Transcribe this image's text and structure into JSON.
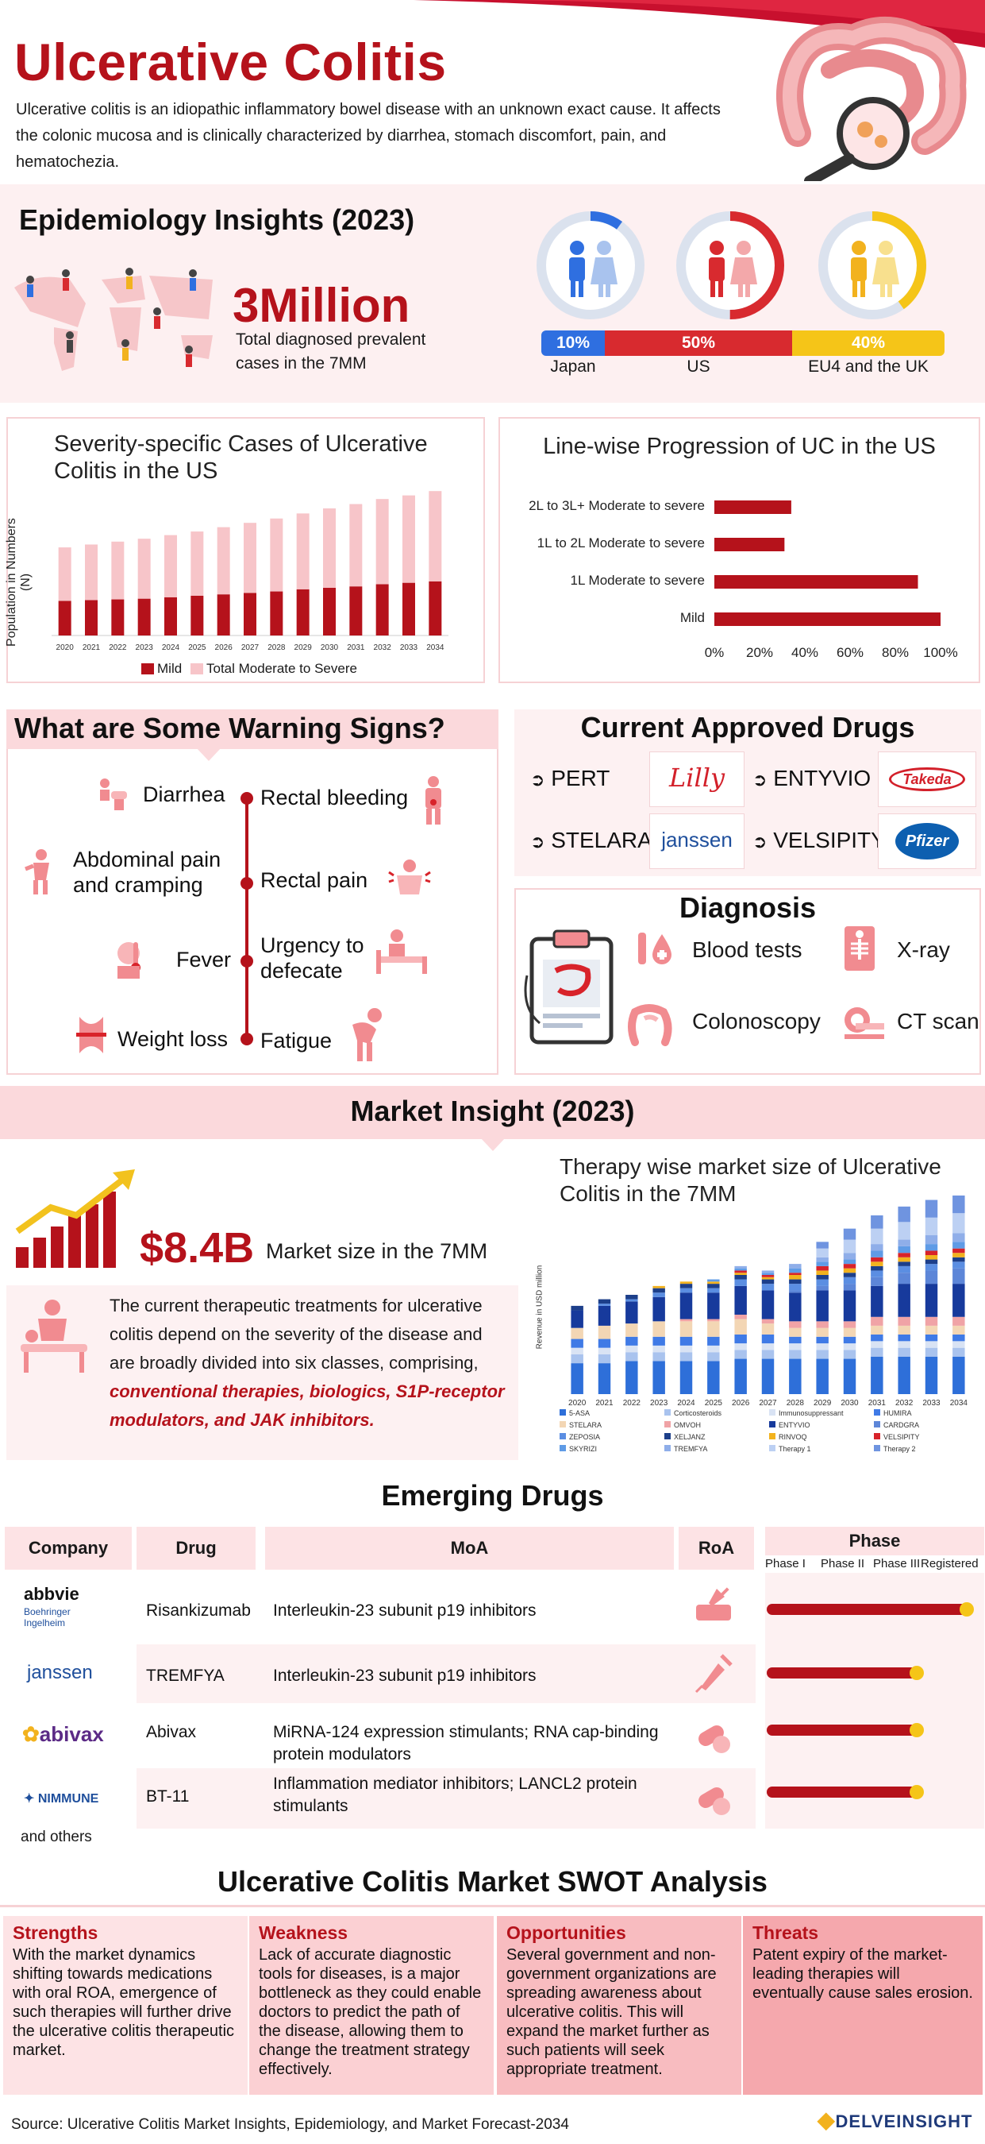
{
  "header": {
    "title": "Ulcerative Colitis",
    "intro": "Ulcerative colitis is an idiopathic inflammatory bowel disease with an unknown exact cause. It affects the colonic mucosa and is clinically characterized by diarrhea, stomach discomfort, pain, and hematochezia."
  },
  "epidemiology": {
    "title": "Epidemiology Insights (2023)",
    "big_number": "3Million",
    "big_caption": "Total diagnosed prevalent cases in the 7MM",
    "regions": [
      {
        "label": "Japan",
        "pct": "10%",
        "share": 0.1,
        "color": "#2f6fe0"
      },
      {
        "label": "US",
        "pct": "50%",
        "share": 0.5,
        "color": "#d82a2f"
      },
      {
        "label": "EU4 and the UK",
        "pct": "40%",
        "share": 0.4,
        "color": "#f5c518"
      }
    ]
  },
  "severity_chart": {
    "title": "Severity-specific Cases of Ulcerative Colitis in the US",
    "ylabel": "Population in Numbers (N)",
    "legend": [
      "Mild",
      "Total Moderate to Severe"
    ]
  },
  "line_chart": {
    "title": "Line-wise Progression of UC in the US"
  },
  "chart_data": [
    {
      "type": "bar",
      "title": "Severity-specific Cases of Ulcerative Colitis in the US",
      "ylabel": "Population in Numbers (N)",
      "categories": [
        "2020",
        "2021",
        "2022",
        "2023",
        "2024",
        "2025",
        "2026",
        "2027",
        "2028",
        "2029",
        "2030",
        "2031",
        "2032",
        "2033",
        "2034"
      ],
      "series": [
        {
          "name": "Mild",
          "color": "#b5121b",
          "values": [
            48,
            49,
            50,
            51,
            53,
            55,
            57,
            59,
            61,
            64,
            66,
            68,
            71,
            73,
            75
          ]
        },
        {
          "name": "Total Moderate to Severe",
          "color": "#f7c5c9",
          "values": [
            74,
            77,
            80,
            83,
            86,
            89,
            93,
            97,
            101,
            105,
            110,
            114,
            118,
            121,
            125
          ]
        }
      ],
      "stacked": true,
      "ylim": [
        0,
        220
      ],
      "legend": "bottom"
    },
    {
      "type": "bar",
      "orientation": "horizontal",
      "title": "Line-wise Progression of UC in the US",
      "categories": [
        "2L to 3L+ Moderate to severe",
        "1L to 2L Moderate to severe",
        "1L Moderate to severe",
        "Mild"
      ],
      "values": [
        34,
        31,
        90,
        100
      ],
      "x_ticks": [
        "0%",
        "20%",
        "40%",
        "60%",
        "80%",
        "100%"
      ],
      "xlim": [
        0,
        100
      ],
      "color": "#b5121b"
    },
    {
      "type": "bar",
      "title": "Therapy wise market size of Ulcerative Colitis in the 7MM",
      "ylabel": "Revenue in USD million",
      "categories": [
        "2020",
        "2021",
        "2022",
        "2023",
        "2024",
        "2025",
        "2026",
        "2027",
        "2028",
        "2029",
        "2030",
        "2031",
        "2032",
        "2033",
        "2034"
      ],
      "stacked": true,
      "series": [
        {
          "name": "5-ASA",
          "color": "#2e6fd9",
          "values": [
            14,
            14,
            15,
            15,
            15,
            15,
            16,
            16,
            16,
            16,
            16,
            17,
            17,
            17,
            17
          ]
        },
        {
          "name": "Corticosteroids",
          "color": "#a9c3ee",
          "values": [
            4,
            4,
            4,
            4,
            4,
            4,
            4,
            4,
            4,
            4,
            4,
            4,
            4,
            4,
            4
          ]
        },
        {
          "name": "Immunosuppressant",
          "color": "#d9e3f4",
          "values": [
            3,
            3,
            3,
            3,
            3,
            3,
            3,
            3,
            3,
            3,
            3,
            3,
            3,
            3,
            3
          ]
        },
        {
          "name": "HUMIRA",
          "color": "#3f7ae6",
          "values": [
            4,
            4,
            4,
            4,
            4,
            4,
            4,
            4,
            3,
            3,
            3,
            3,
            3,
            3,
            3
          ]
        },
        {
          "name": "STELARA",
          "color": "#f3d6b4",
          "values": [
            5,
            6,
            6,
            7,
            7,
            7,
            7,
            5,
            4,
            4,
            4,
            4,
            4,
            4,
            4
          ]
        },
        {
          "name": "OMVOH",
          "color": "#f0a3a6",
          "values": [
            0,
            0,
            0,
            0,
            1,
            1,
            2,
            2,
            3,
            3,
            3,
            4,
            4,
            4,
            4
          ]
        },
        {
          "name": "ENTYVIO",
          "color": "#173a9c",
          "values": [
            8,
            9,
            10,
            11,
            12,
            12,
            13,
            13,
            13,
            14,
            14,
            14,
            15,
            15,
            15
          ]
        },
        {
          "name": "CARDGRA",
          "color": "#5d86d8",
          "values": [
            0,
            0,
            0,
            0,
            0,
            0,
            0,
            0,
            1,
            2,
            3,
            4,
            5,
            6,
            7
          ]
        },
        {
          "name": "ZEPOSIA",
          "color": "#5b8ee2",
          "values": [
            0,
            1,
            1,
            2,
            2,
            2,
            3,
            3,
            3,
            3,
            3,
            3,
            3,
            3,
            3
          ]
        },
        {
          "name": "XELJANZ",
          "color": "#1d3f8a",
          "values": [
            2,
            2,
            2,
            2,
            2,
            2,
            2,
            2,
            2,
            2,
            2,
            2,
            2,
            2,
            2
          ]
        },
        {
          "name": "RINVOQ",
          "color": "#f2b21e",
          "values": [
            0,
            0,
            0,
            1,
            1,
            1,
            1,
            1,
            2,
            2,
            2,
            2,
            2,
            2,
            2
          ]
        },
        {
          "name": "VELSIPITY",
          "color": "#d8232a",
          "values": [
            0,
            0,
            0,
            0,
            0,
            0,
            1,
            1,
            1,
            2,
            2,
            2,
            2,
            2,
            2
          ]
        },
        {
          "name": "SKYRIZI",
          "color": "#5f9be6",
          "values": [
            0,
            0,
            0,
            0,
            0,
            1,
            1,
            1,
            2,
            2,
            2,
            3,
            3,
            3,
            3
          ]
        },
        {
          "name": "TREMFYA",
          "color": "#8faee9",
          "values": [
            0,
            0,
            0,
            0,
            0,
            0,
            1,
            1,
            2,
            2,
            3,
            3,
            3,
            4,
            4
          ]
        },
        {
          "name": "Therapy 1",
          "color": "#bcd0f3",
          "values": [
            0,
            0,
            0,
            0,
            0,
            0,
            0,
            0,
            0,
            4,
            6,
            7,
            8,
            8,
            9
          ]
        },
        {
          "name": "Therapy 2",
          "color": "#6f94e0",
          "values": [
            0,
            0,
            0,
            0,
            0,
            0,
            0,
            0,
            0,
            3,
            5,
            6,
            7,
            8,
            8
          ]
        }
      ],
      "legend": "bottom"
    }
  ],
  "warning_signs": {
    "title": "What are Some Warning Signs?",
    "left": [
      "Diarrhea",
      "Abdominal pain and cramping",
      "Fever",
      "Weight loss"
    ],
    "right": [
      "Rectal bleeding",
      "Rectal pain",
      "Urgency to defecate",
      "Fatigue"
    ]
  },
  "approved_drugs": {
    "title": "Current Approved Drugs",
    "items": [
      {
        "name": "PERT",
        "company": "Lilly",
        "color": "#d3202a"
      },
      {
        "name": "ENTYVIO",
        "company": "Takeda",
        "color": "#d3202a"
      },
      {
        "name": "STELARA",
        "company": "janssen",
        "color": "#1f4f9c"
      },
      {
        "name": "VELSIPITY",
        "company": "Pfizer",
        "color": "#0d5fb0"
      }
    ]
  },
  "diagnosis": {
    "title": "Diagnosis",
    "items": [
      "Blood tests",
      "X-ray",
      "Colonoscopy",
      "CT scan"
    ]
  },
  "market": {
    "title": "Market Insight (2023)",
    "size": "$8.4B",
    "size_caption": "Market size in the 7MM",
    "text_plain": "The current therapeutic treatments for ulcerative colitis depend on the severity of the disease and are broadly divided into six classes, comprising,",
    "text_emph": "conventional therapies, biologics, S1P-receptor modulators, and JAK inhibitors.",
    "chart_title": "Therapy wise market size of Ulcerative Colitis in the 7MM",
    "chart_ylabel": "Revenue in USD million"
  },
  "emerging": {
    "title": "Emerging Drugs",
    "headers": {
      "company": "Company",
      "drug": "Drug",
      "moa": "MoA",
      "roa": "RoA",
      "phase": "Phase"
    },
    "phases": [
      "Phase I",
      "Phase II",
      "Phase III",
      "Registered"
    ],
    "rows": [
      {
        "company": "abbvie / Boehringer Ingelheim",
        "drug": "Risankizumab",
        "moa": "Interleukin-23 subunit p19 inhibitors",
        "roa": "injection",
        "phase_level": 1.0
      },
      {
        "company": "janssen",
        "drug": "TREMFYA",
        "moa": "Interleukin-23 subunit p19 inhibitors",
        "roa": "syringe",
        "phase_level": 0.75
      },
      {
        "company": "abivax",
        "drug": "Abivax",
        "moa": "MiRNA-124 expression stimulants; RNA cap-binding protein modulators",
        "roa": "oral",
        "phase_level": 0.75
      },
      {
        "company": "NIMMUNE",
        "drug": "BT-11",
        "moa": "Inflammation mediator inhibitors; LANCL2 protein stimulants",
        "roa": "oral",
        "phase_level": 0.75
      }
    ],
    "others": "and others"
  },
  "swot": {
    "title": "Ulcerative Colitis Market SWOT Analysis",
    "items": [
      {
        "head": "Strengths",
        "text": "With the market dynamics shifting towards medications with oral ROA, emergence of such therapies will further drive the ulcerative colitis therapeutic market."
      },
      {
        "head": "Weakness",
        "text": "Lack of accurate diagnostic tools for diseases, is a major bottleneck as they could enable doctors to predict the path of the disease, allowing them to change the treatment strategy effectively."
      },
      {
        "head": "Opportunities",
        "text": "Several government and non-government organizations are spreading awareness about ulcerative colitis. This will expand the market further as such patients will seek appropriate treatment."
      },
      {
        "head": "Threats",
        "text": "Patent expiry of the market-leading therapies will eventually cause sales erosion."
      }
    ]
  },
  "footer": {
    "source": "Source: Ulcerative Colitis Market Insights, Epidemiology, and Market Forecast-2034",
    "brand": "DELVEINSIGHT"
  }
}
